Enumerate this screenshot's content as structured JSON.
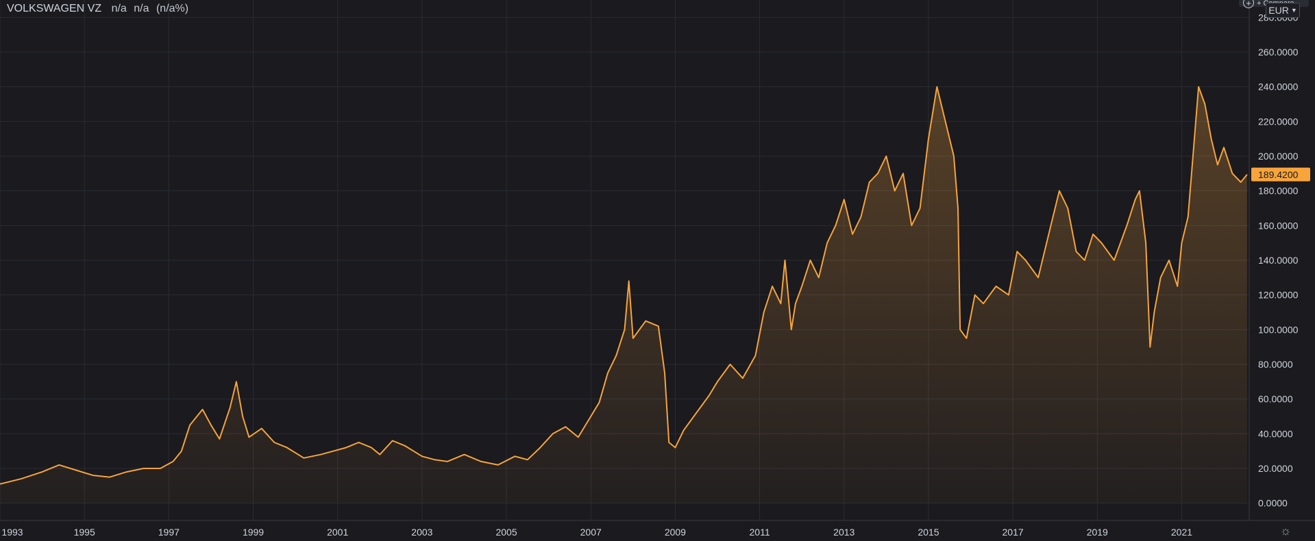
{
  "header": {
    "symbol": "VOLKSWAGEN VZ",
    "last": "n/a",
    "change": "n/a",
    "change_pct": "(n/a%)"
  },
  "toolbar": {
    "compare_label": "+ Compare",
    "currency": "EUR",
    "settings_icon": "gear-icon"
  },
  "colors": {
    "background": "#1a1a1f",
    "grid": "#2b2c33",
    "line": "#f7a43b",
    "price_badge": "#f7a43b",
    "axis_text": "#d1d4dc"
  },
  "chart_data": {
    "type": "area",
    "title": "VOLKSWAGEN VZ",
    "xlabel": "",
    "ylabel": "",
    "xlim": [
      1993.0,
      2022.6
    ],
    "ylim": [
      -10,
      290
    ],
    "x_ticks": [
      "1993",
      "1995",
      "1997",
      "1999",
      "2001",
      "2003",
      "2005",
      "2007",
      "2009",
      "2011",
      "2013",
      "2015",
      "2017",
      "2019",
      "2021"
    ],
    "y_ticks": [
      "0.0000",
      "20.0000",
      "40.0000",
      "60.0000",
      "80.0000",
      "100.0000",
      "120.0000",
      "140.0000",
      "160.0000",
      "180.0000",
      "200.0000",
      "220.0000",
      "240.0000",
      "260.0000",
      "280.0000"
    ],
    "last_value_label": "189.4200",
    "grid": true,
    "series": [
      {
        "name": "",
        "x": [
          1993.0,
          1993.5,
          1994.0,
          1994.4,
          1994.8,
          1995.2,
          1995.6,
          1996.0,
          1996.4,
          1996.8,
          1997.1,
          1997.3,
          1997.5,
          1997.8,
          1998.0,
          1998.2,
          1998.45,
          1998.6,
          1998.75,
          1998.9,
          1999.2,
          1999.5,
          1999.8,
          2000.2,
          2000.6,
          2000.9,
          2001.2,
          2001.5,
          2001.8,
          2002.0,
          2002.3,
          2002.6,
          2003.0,
          2003.3,
          2003.6,
          2004.0,
          2004.4,
          2004.8,
          2005.2,
          2005.5,
          2005.8,
          2006.1,
          2006.4,
          2006.7,
          2007.0,
          2007.2,
          2007.4,
          2007.6,
          2007.8,
          2007.9,
          2008.0,
          2008.3,
          2008.6,
          2008.75,
          2008.85,
          2009.0,
          2009.2,
          2009.5,
          2009.8,
          2010.0,
          2010.3,
          2010.6,
          2010.9,
          2011.1,
          2011.3,
          2011.5,
          2011.6,
          2011.75,
          2011.85,
          2012.0,
          2012.2,
          2012.4,
          2012.6,
          2012.8,
          2013.0,
          2013.2,
          2013.4,
          2013.6,
          2013.8,
          2014.0,
          2014.2,
          2014.4,
          2014.6,
          2014.8,
          2015.0,
          2015.2,
          2015.4,
          2015.6,
          2015.7,
          2015.75,
          2015.9,
          2016.1,
          2016.3,
          2016.6,
          2016.9,
          2017.1,
          2017.3,
          2017.6,
          2017.9,
          2018.1,
          2018.3,
          2018.5,
          2018.7,
          2018.9,
          2019.1,
          2019.4,
          2019.7,
          2019.9,
          2020.0,
          2020.15,
          2020.25,
          2020.35,
          2020.5,
          2020.7,
          2020.9,
          2021.0,
          2021.15,
          2021.25,
          2021.4,
          2021.55,
          2021.7,
          2021.85,
          2022.0,
          2022.2,
          2022.4,
          2022.55
        ],
        "y": [
          11,
          14,
          18,
          22,
          19,
          16,
          15,
          18,
          20,
          20,
          24,
          30,
          45,
          54,
          45,
          37,
          55,
          70,
          50,
          38,
          43,
          35,
          32,
          26,
          28,
          30,
          32,
          35,
          32,
          28,
          36,
          33,
          27,
          25,
          24,
          28,
          24,
          22,
          27,
          25,
          32,
          40,
          44,
          38,
          50,
          58,
          75,
          85,
          100,
          128,
          95,
          105,
          102,
          75,
          35,
          32,
          42,
          52,
          62,
          70,
          80,
          72,
          85,
          110,
          125,
          115,
          140,
          100,
          115,
          125,
          140,
          130,
          150,
          160,
          175,
          155,
          165,
          185,
          190,
          200,
          180,
          190,
          160,
          170,
          210,
          240,
          220,
          200,
          170,
          100,
          95,
          120,
          115,
          125,
          120,
          145,
          140,
          130,
          160,
          180,
          170,
          145,
          140,
          155,
          150,
          140,
          160,
          175,
          180,
          150,
          90,
          110,
          130,
          140,
          125,
          150,
          165,
          195,
          240,
          230,
          210,
          195,
          205,
          190,
          185,
          189.42
        ]
      }
    ]
  }
}
